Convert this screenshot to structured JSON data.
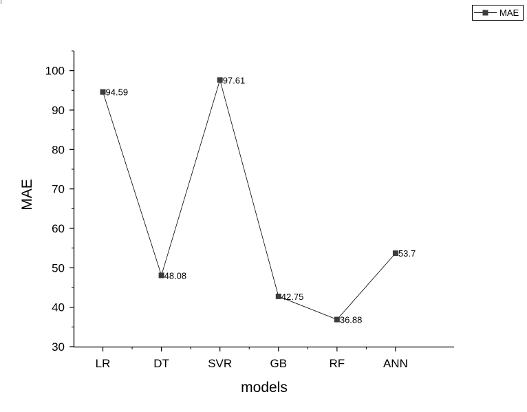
{
  "chart_data": {
    "type": "line",
    "categories": [
      "LR",
      "DT",
      "SVR",
      "GB",
      "RF",
      "ANN"
    ],
    "series": [
      {
        "name": "MAE",
        "values": [
          94.59,
          48.08,
          97.61,
          42.75,
          36.88,
          53.7
        ]
      }
    ],
    "data_labels": [
      "94.59",
      "48.08",
      "97.61",
      "42.75",
      "36.88",
      "53.7"
    ],
    "xlabel": "models",
    "ylabel": "MAE",
    "ylim": [
      30,
      105
    ],
    "yticks": [
      "30",
      "40",
      "50",
      "60",
      "70",
      "80",
      "90",
      "100"
    ],
    "grid": false,
    "legend_position": "top-right",
    "colors": {
      "line": "#000000",
      "marker": "#3c3c3c"
    }
  }
}
